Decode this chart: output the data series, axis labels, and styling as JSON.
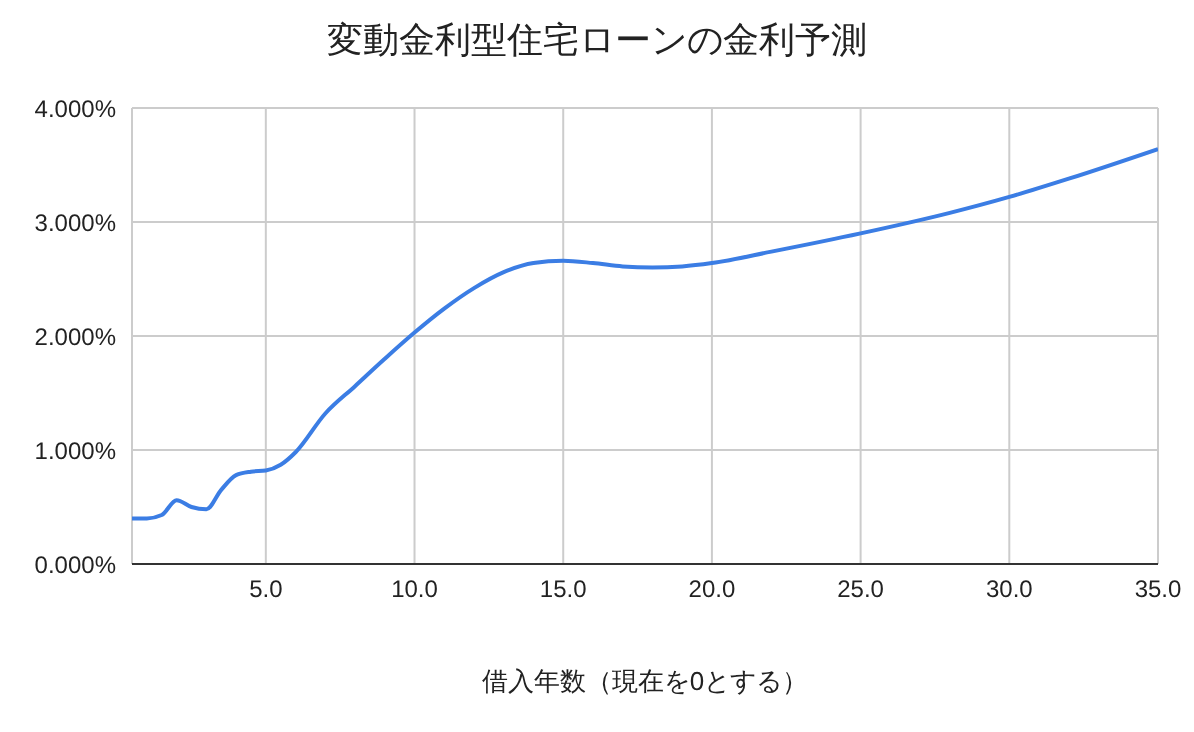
{
  "chart_data": {
    "type": "line",
    "title": "変動金利型住宅ローンの金利予測",
    "xlabel": "借入年数（現在を0とする）",
    "x": [
      0.5,
      1,
      1.5,
      2,
      2.5,
      3,
      3.5,
      4,
      4.5,
      5,
      5.5,
      6,
      7,
      8,
      9,
      10,
      11,
      12,
      13,
      14,
      15,
      16,
      17,
      18,
      19,
      20,
      22,
      25,
      28,
      30,
      32,
      35
    ],
    "series": [
      {
        "color": "#3b7de4",
        "values": [
          0.4,
          0.4,
          0.43,
          0.56,
          0.5,
          0.48,
          0.65,
          0.78,
          0.81,
          0.82,
          0.87,
          0.98,
          1.32,
          1.56,
          1.8,
          2.03,
          2.24,
          2.42,
          2.56,
          2.64,
          2.66,
          2.64,
          2.61,
          2.6,
          2.61,
          2.64,
          2.74,
          2.9,
          3.08,
          3.22,
          3.38,
          3.64
        ]
      }
    ],
    "xlim": [
      0.5,
      35
    ],
    "xticks": [
      {
        "value": 5,
        "label": "5.0"
      },
      {
        "value": 10,
        "label": "10.0"
      },
      {
        "value": 15,
        "label": "15.0"
      },
      {
        "value": 20,
        "label": "20.0"
      },
      {
        "value": 25,
        "label": "25.0"
      },
      {
        "value": 30,
        "label": "30.0"
      },
      {
        "value": 35,
        "label": "35.0"
      }
    ],
    "ylim": [
      0,
      4
    ],
    "yticks": [
      {
        "value": 0,
        "label": "0.000%"
      },
      {
        "value": 1,
        "label": "1.000%"
      },
      {
        "value": 2,
        "label": "2.000%"
      },
      {
        "value": 3,
        "label": "3.000%"
      },
      {
        "value": 4,
        "label": "4.000%"
      }
    ],
    "grid": true,
    "marker": "none",
    "line_style": "solid",
    "legend": false
  }
}
